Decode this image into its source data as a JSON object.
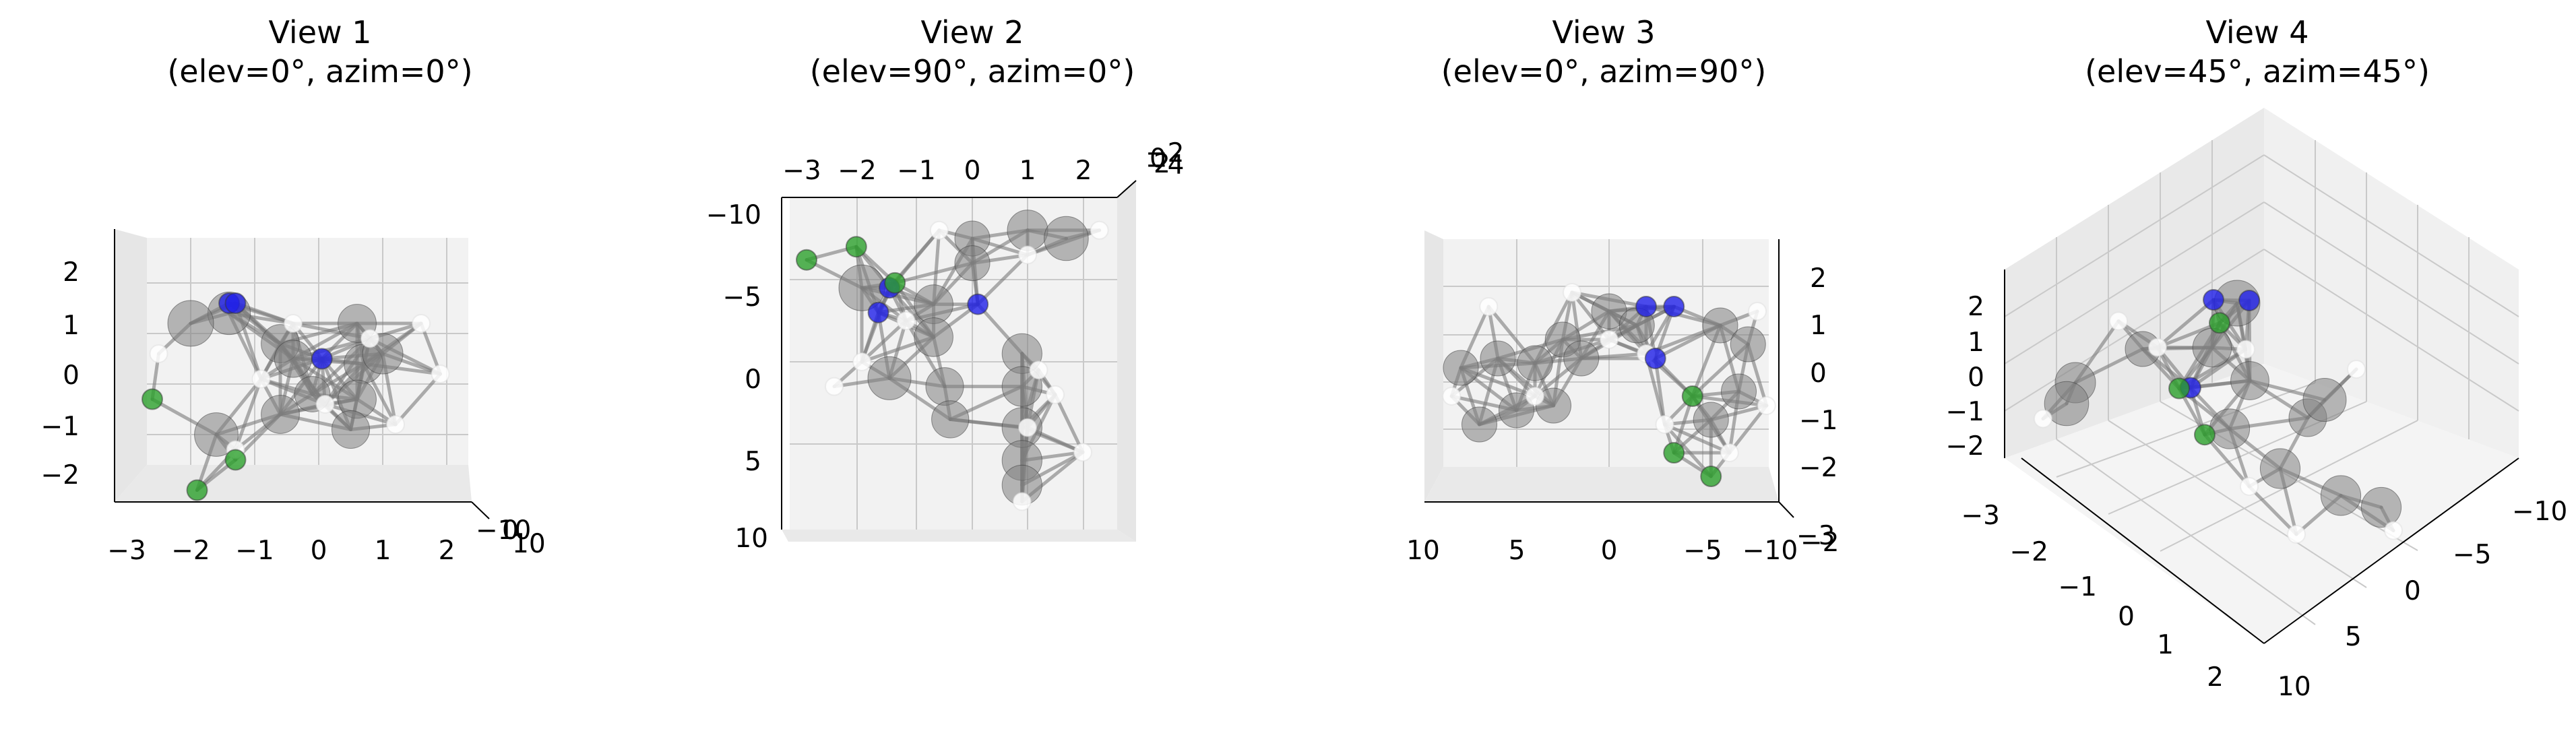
{
  "figure": {
    "background": "#ffffff"
  },
  "colors": {
    "pane_face": "#f2f2f2",
    "pane_shade": "#e6e6e6",
    "grid": "#c9c9c9",
    "bond": "#7a7a7a",
    "atom_gray": "#808080",
    "atom_white": "#ffffff",
    "atom_blue": "#1f1fe8",
    "atom_green": "#2ca02c"
  },
  "chart_data": [
    {
      "type": "scatter",
      "projection": "3d",
      "title": [
        "View 1",
        "(elev=0°, azim=0°)"
      ],
      "ticks": {
        "x": [
          "−3",
          "−2",
          "−1",
          "0",
          "1",
          "2"
        ],
        "y": [
          "−10",
          "0",
          "10"
        ],
        "z": [
          "−2",
          "−1",
          "0",
          "1",
          "2"
        ]
      },
      "atoms": [
        {
          "color": "gray",
          "x": -1.4,
          "z": 1.4
        },
        {
          "color": "gray",
          "x": -0.6,
          "z": 0.8
        },
        {
          "color": "gray",
          "x": -0.4,
          "z": 0.5
        },
        {
          "color": "gray",
          "x": 0.6,
          "z": 1.2
        },
        {
          "color": "gray",
          "x": 0.7,
          "z": 0.4
        },
        {
          "color": "gray",
          "x": 0.6,
          "z": -0.3
        },
        {
          "color": "gray",
          "x": 0.5,
          "z": -0.9
        },
        {
          "color": "gray",
          "x": -0.6,
          "z": -0.6
        },
        {
          "color": "gray",
          "x": -1.6,
          "z": -1.0
        },
        {
          "color": "gray",
          "x": -0.1,
          "z": -0.2
        },
        {
          "color": "gray",
          "x": -2.0,
          "z": 1.2
        },
        {
          "color": "gray",
          "x": 1.0,
          "z": 0.6
        },
        {
          "color": "white",
          "x": -0.4,
          "z": 1.2
        },
        {
          "color": "white",
          "x": 0.8,
          "z": 0.9
        },
        {
          "color": "white",
          "x": 1.6,
          "z": 1.2
        },
        {
          "color": "white",
          "x": 1.9,
          "z": 0.2
        },
        {
          "color": "white",
          "x": -2.5,
          "z": 0.6
        },
        {
          "color": "white",
          "x": -1.3,
          "z": -1.3
        },
        {
          "color": "white",
          "x": 0.1,
          "z": -0.4
        },
        {
          "color": "white",
          "x": 1.2,
          "z": -0.8
        },
        {
          "color": "white",
          "x": -0.9,
          "z": 0.1
        },
        {
          "color": "blue",
          "x": -1.4,
          "z": 1.6
        },
        {
          "color": "blue",
          "x": -1.3,
          "z": 1.6
        },
        {
          "color": "blue",
          "x": 0.05,
          "z": 0.5
        },
        {
          "color": "green",
          "x": -2.6,
          "z": -0.3
        },
        {
          "color": "green",
          "x": -1.3,
          "z": -1.5
        },
        {
          "color": "green",
          "x": -1.9,
          "z": -2.1
        }
      ]
    },
    {
      "type": "scatter",
      "projection": "3d",
      "title": [
        "View 2",
        "(elev=90°, azim=0°)"
      ],
      "ticks": {
        "x": [
          "−3",
          "−2",
          "−1",
          "0",
          "1",
          "2"
        ],
        "y": [
          "−10",
          "−5",
          "0",
          "5",
          "10"
        ],
        "z": [
          "−2",
          "0",
          "2",
          "−4"
        ]
      },
      "atoms": [
        {
          "color": "gray",
          "x": 0.0,
          "y": -7.5
        },
        {
          "color": "gray",
          "x": 1.0,
          "y": -8.0
        },
        {
          "color": "gray",
          "x": 1.7,
          "y": -7.5
        },
        {
          "color": "gray",
          "x": 0.0,
          "y": -6.0
        },
        {
          "color": "gray",
          "x": -0.7,
          "y": -3.5
        },
        {
          "color": "gray",
          "x": -0.7,
          "y": -1.5
        },
        {
          "color": "gray",
          "x": -0.5,
          "y": 1.5
        },
        {
          "color": "gray",
          "x": -0.4,
          "y": 3.5
        },
        {
          "color": "gray",
          "x": 0.9,
          "y": -0.5
        },
        {
          "color": "gray",
          "x": 0.9,
          "y": 1.5
        },
        {
          "color": "gray",
          "x": 0.9,
          "y": 4.0
        },
        {
          "color": "gray",
          "x": 0.9,
          "y": 6.0
        },
        {
          "color": "gray",
          "x": 0.9,
          "y": 7.5
        },
        {
          "color": "gray",
          "x": -1.5,
          "y": 1.0
        },
        {
          "color": "gray",
          "x": -2.0,
          "y": -4.5
        },
        {
          "color": "white",
          "x": -0.6,
          "y": -8.0
        },
        {
          "color": "white",
          "x": 1.0,
          "y": -6.5
        },
        {
          "color": "white",
          "x": 2.3,
          "y": -8.0
        },
        {
          "color": "white",
          "x": -2.0,
          "y": 0.0
        },
        {
          "color": "white",
          "x": -2.5,
          "y": 1.5
        },
        {
          "color": "white",
          "x": 1.2,
          "y": 0.5
        },
        {
          "color": "white",
          "x": 1.5,
          "y": 2.0
        },
        {
          "color": "white",
          "x": 1.0,
          "y": 4.0
        },
        {
          "color": "white",
          "x": 0.9,
          "y": 8.5
        },
        {
          "color": "white",
          "x": -1.2,
          "y": -2.5
        },
        {
          "color": "white",
          "x": 2.0,
          "y": 5.5
        },
        {
          "color": "blue",
          "x": -1.5,
          "y": -4.5
        },
        {
          "color": "blue",
          "x": 0.1,
          "y": -3.5
        },
        {
          "color": "blue",
          "x": -1.7,
          "y": -3.0
        },
        {
          "color": "green",
          "x": -3.0,
          "y": -6.2
        },
        {
          "color": "green",
          "x": -2.1,
          "y": -7.0
        },
        {
          "color": "green",
          "x": -1.4,
          "y": -4.8
        }
      ]
    },
    {
      "type": "scatter",
      "projection": "3d",
      "title": [
        "View 3",
        "(elev=0°, azim=90°)"
      ],
      "ticks": {
        "y": [
          "10",
          "5",
          "0",
          "−5",
          "−10"
        ],
        "x": [
          "−3",
          "−2"
        ],
        "z": [
          "−2",
          "−1",
          "0",
          "1",
          "2"
        ]
      },
      "atoms": [
        {
          "color": "gray",
          "y": 8.0,
          "z": 0.3
        },
        {
          "color": "gray",
          "y": 6.0,
          "z": 0.5
        },
        {
          "color": "gray",
          "y": 4.0,
          "z": 0.4
        },
        {
          "color": "gray",
          "y": 2.5,
          "z": 0.9
        },
        {
          "color": "gray",
          "y": 0.0,
          "z": 1.5
        },
        {
          "color": "gray",
          "y": -1.5,
          "z": 1.2
        },
        {
          "color": "gray",
          "y": 5.0,
          "z": -0.6
        },
        {
          "color": "gray",
          "y": 7.0,
          "z": -0.9
        },
        {
          "color": "gray",
          "y": 3.0,
          "z": -0.5
        },
        {
          "color": "gray",
          "y": -6.0,
          "z": 1.2
        },
        {
          "color": "gray",
          "y": -7.5,
          "z": 0.8
        },
        {
          "color": "gray",
          "y": -7.0,
          "z": -0.2
        },
        {
          "color": "gray",
          "y": -5.5,
          "z": -0.8
        },
        {
          "color": "gray",
          "y": 1.5,
          "z": 0.5
        },
        {
          "color": "white",
          "y": 6.5,
          "z": 1.6
        },
        {
          "color": "white",
          "y": 2.0,
          "z": 1.9
        },
        {
          "color": "white",
          "y": 0.0,
          "z": 0.9
        },
        {
          "color": "white",
          "y": -2.0,
          "z": 0.6
        },
        {
          "color": "white",
          "y": 8.5,
          "z": -0.3
        },
        {
          "color": "white",
          "y": 4.0,
          "z": -0.3
        },
        {
          "color": "white",
          "y": -8.0,
          "z": 1.5
        },
        {
          "color": "white",
          "y": -8.5,
          "z": -0.5
        },
        {
          "color": "white",
          "y": -6.5,
          "z": -1.5
        },
        {
          "color": "white",
          "y": -3.0,
          "z": -0.9
        },
        {
          "color": "blue",
          "y": -2.0,
          "z": 1.6
        },
        {
          "color": "blue",
          "y": -3.5,
          "z": 1.6
        },
        {
          "color": "blue",
          "y": -2.5,
          "z": 0.5
        },
        {
          "color": "green",
          "y": -4.5,
          "z": -0.3
        },
        {
          "color": "green",
          "y": -3.5,
          "z": -1.5
        },
        {
          "color": "green",
          "y": -5.5,
          "z": -2.0
        }
      ]
    },
    {
      "type": "scatter",
      "projection": "3d",
      "title": [
        "View 4",
        "(elev=45°, azim=45°)"
      ],
      "ticks": {
        "x": [
          "−3",
          "−2",
          "−1",
          "0",
          "1",
          "2"
        ],
        "y": [
          "−10",
          "−5",
          "0",
          "5",
          "10"
        ],
        "z": [
          "−2",
          "−1",
          "0",
          "1",
          "2"
        ]
      },
      "atoms": [
        {
          "color": "gray",
          "x": -0.7,
          "y": -3.5,
          "z": 1.0
        },
        {
          "color": "gray",
          "x": 0.0,
          "y": -6.0,
          "z": 1.2
        },
        {
          "color": "gray",
          "x": 1.0,
          "y": -8.0,
          "z": 0.8
        },
        {
          "color": "gray",
          "x": -0.6,
          "y": -1.5,
          "z": 0.4
        },
        {
          "color": "gray",
          "x": -0.5,
          "y": 1.5,
          "z": -0.2
        },
        {
          "color": "gray",
          "x": 0.9,
          "y": -0.5,
          "z": 0.3
        },
        {
          "color": "gray",
          "x": 0.9,
          "y": 2.0,
          "z": -0.5
        },
        {
          "color": "gray",
          "x": 0.9,
          "y": 5.0,
          "z": -0.9
        },
        {
          "color": "gray",
          "x": 0.9,
          "y": 7.0,
          "z": -1.0
        },
        {
          "color": "gray",
          "x": -1.5,
          "y": 1.0,
          "z": -0.5
        },
        {
          "color": "gray",
          "x": -2.0,
          "y": -4.0,
          "z": 1.2
        },
        {
          "color": "gray",
          "x": 1.7,
          "y": -7.5,
          "z": 0.8
        },
        {
          "color": "white",
          "x": -0.6,
          "y": -8.0,
          "z": 1.3
        },
        {
          "color": "white",
          "x": 2.2,
          "y": -8.0,
          "z": 0.7
        },
        {
          "color": "white",
          "x": -2.3,
          "y": 1.5,
          "z": -0.2
        },
        {
          "color": "white",
          "x": 1.3,
          "y": 1.0,
          "z": -0.8
        },
        {
          "color": "white",
          "x": 1.2,
          "y": 8.0,
          "z": -1.3
        },
        {
          "color": "white",
          "x": -1.2,
          "y": -2.5,
          "z": 0.7
        },
        {
          "color": "white",
          "x": 1.8,
          "y": 4.0,
          "z": -1.4
        },
        {
          "color": "white",
          "x": 0.2,
          "y": -5.0,
          "z": 1.5
        },
        {
          "color": "blue",
          "x": -1.5,
          "y": -4.5,
          "z": 1.6
        },
        {
          "color": "blue",
          "x": -1.7,
          "y": -3.0,
          "z": 1.6
        },
        {
          "color": "blue",
          "x": 0.1,
          "y": -3.5,
          "z": 0.5
        },
        {
          "color": "green",
          "x": -3.0,
          "y": -6.2,
          "z": -0.3
        },
        {
          "color": "green",
          "x": -2.1,
          "y": -7.0,
          "z": -1.5
        },
        {
          "color": "green",
          "x": -1.4,
          "y": -4.8,
          "z": -2.0
        }
      ]
    }
  ]
}
